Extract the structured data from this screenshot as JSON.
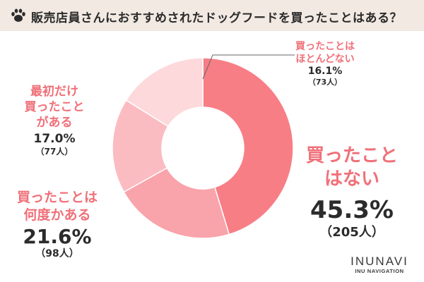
{
  "title": "販売店員さんにおすすめされたドッグフードを買ったことはある？",
  "colors": {
    "title_bg": "#f1e9e2",
    "accent": "#f07079",
    "slice_never": "#f87e86",
    "slice_several": "#f9a3aa",
    "slice_first": "#fbbcc1",
    "slice_rare": "#fdd9dc"
  },
  "icons": {
    "title_icon": "paw-icon"
  },
  "chart_data": {
    "type": "pie",
    "donut": true,
    "title": "販売店員さんにおすすめされたドッグフードを買ったことはある？",
    "categories": [
      "買ったことはない",
      "買ったことは何度かある",
      "最初だけ買ったことがある",
      "買ったことはほとんどない"
    ],
    "values": [
      45.3,
      21.6,
      17.0,
      16.1
    ],
    "counts": [
      205,
      98,
      77,
      73
    ],
    "labels": [
      {
        "line1": "買ったこと",
        "line2": "はない",
        "pct": "45.3%",
        "count": "（205人）"
      },
      {
        "line1": "買ったことは",
        "line2": "何度かある",
        "pct": "21.6%",
        "count": "（98人）"
      },
      {
        "line1": "最初だけ",
        "line2": "買ったこと",
        "line3": "がある",
        "pct": "17.0%",
        "count": "（77人）"
      },
      {
        "line1": "買ったことは",
        "line2": "ほとんどない",
        "pct": "16.1%",
        "count": "（73人）"
      }
    ]
  },
  "brand": {
    "name": "INUNAVI",
    "sub": "INU NAVIGATION"
  }
}
